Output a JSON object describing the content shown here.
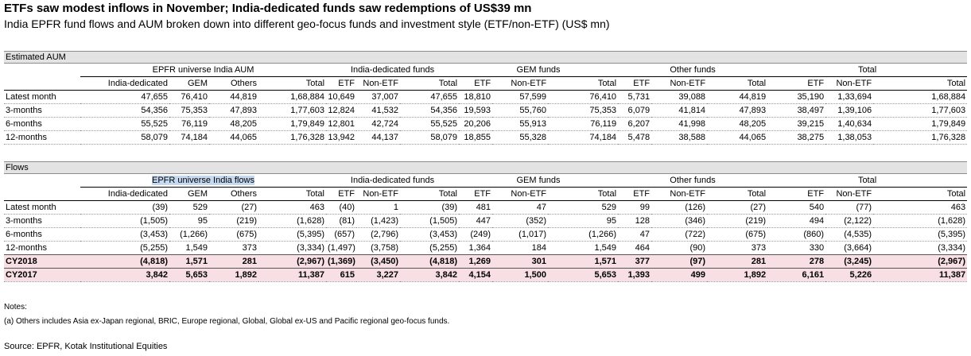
{
  "title": "ETFs saw modest inflows in November; India-dedicated funds saw redemptions of US$39 mn",
  "subtitle": "India EPFR fund flows and AUM broken down into different geo-focus funds and investment style (ETF/non-ETF) (US$ mn)",
  "aum": {
    "section_title": "Estimated AUM",
    "groups": [
      "EPFR universe India AUM",
      "India-dedicated funds",
      "GEM funds",
      "Other funds",
      "Total"
    ],
    "columns": [
      "India-dedicated",
      "GEM",
      "Others",
      "Total",
      "ETF",
      "Non-ETF",
      "Total",
      "ETF",
      "Non-ETF",
      "Total",
      "ETF",
      "Non-ETF",
      "Total",
      "ETF",
      "Non-ETF",
      "Total"
    ],
    "rows": [
      {
        "label": "Latest month",
        "values": [
          "47,655",
          "76,410",
          "44,819",
          "1,68,884",
          "10,649",
          "37,007",
          "47,655",
          "18,810",
          "57,599",
          "76,410",
          "5,731",
          "39,088",
          "44,819",
          "35,190",
          "1,33,694",
          "1,68,884"
        ]
      },
      {
        "label": "3-months",
        "values": [
          "54,356",
          "75,353",
          "47,893",
          "1,77,603",
          "12,824",
          "41,532",
          "54,356",
          "19,593",
          "55,760",
          "75,353",
          "6,079",
          "41,814",
          "47,893",
          "38,497",
          "1,39,106",
          "1,77,603"
        ]
      },
      {
        "label": "6-months",
        "values": [
          "55,525",
          "76,119",
          "48,205",
          "1,79,849",
          "12,801",
          "42,724",
          "55,525",
          "20,206",
          "55,913",
          "76,119",
          "6,207",
          "41,998",
          "48,205",
          "39,215",
          "1,40,634",
          "1,79,849"
        ]
      },
      {
        "label": "12-months",
        "values": [
          "58,079",
          "74,184",
          "44,065",
          "1,76,328",
          "13,942",
          "44,137",
          "58,079",
          "18,855",
          "55,328",
          "74,184",
          "5,478",
          "38,588",
          "44,065",
          "38,275",
          "1,38,053",
          "1,76,328"
        ]
      }
    ]
  },
  "flows": {
    "section_title": "Flows",
    "groups": [
      "EPFR universe India flows",
      "India-dedicated funds",
      "GEM funds",
      "Other funds",
      "Total"
    ],
    "columns": [
      "India-dedicated",
      "GEM",
      "Others",
      "Total",
      "ETF",
      "Non-ETF",
      "Total",
      "ETF",
      "Non-ETF",
      "Total",
      "ETF",
      "Non-ETF",
      "Total",
      "ETF",
      "Non-ETF",
      "Total"
    ],
    "rows": [
      {
        "label": "Latest month",
        "values": [
          "(39)",
          "529",
          "(27)",
          "463",
          "(40)",
          "1",
          "(39)",
          "481",
          "47",
          "529",
          "99",
          "(126)",
          "(27)",
          "540",
          "(77)",
          "463"
        ]
      },
      {
        "label": "3-months",
        "values": [
          "(1,505)",
          "95",
          "(219)",
          "(1,628)",
          "(81)",
          "(1,423)",
          "(1,505)",
          "447",
          "(352)",
          "95",
          "128",
          "(346)",
          "(219)",
          "494",
          "(2,122)",
          "(1,628)"
        ]
      },
      {
        "label": "6-months",
        "values": [
          "(3,453)",
          "(1,266)",
          "(675)",
          "(5,395)",
          "(657)",
          "(2,796)",
          "(3,453)",
          "(249)",
          "(1,017)",
          "(1,266)",
          "47",
          "(722)",
          "(675)",
          "(860)",
          "(4,535)",
          "(5,395)"
        ]
      },
      {
        "label": "12-months",
        "values": [
          "(5,255)",
          "1,549",
          "373",
          "(3,334)",
          "(1,497)",
          "(3,758)",
          "(5,255)",
          "1,364",
          "184",
          "1,549",
          "464",
          "(90)",
          "373",
          "330",
          "(3,664)",
          "(3,334)"
        ]
      }
    ],
    "bold_rows": [
      {
        "label": "CY2018",
        "values": [
          "(4,818)",
          "1,571",
          "281",
          "(2,967)",
          "(1,369)",
          "(3,450)",
          "(4,818)",
          "1,269",
          "301",
          "1,571",
          "377",
          "(97)",
          "281",
          "278",
          "(3,245)",
          "(2,967)"
        ]
      },
      {
        "label": "CY2017",
        "values": [
          "3,842",
          "5,653",
          "1,892",
          "11,387",
          "615",
          "3,227",
          "3,842",
          "4,154",
          "1,500",
          "5,653",
          "1,393",
          "499",
          "1,892",
          "6,161",
          "5,226",
          "11,387"
        ]
      }
    ]
  },
  "notes": {
    "heading": "Notes:",
    "lines": [
      "(a) Others includes Asia ex-Japan regional, BRIC, Europe regional, Global, Global ex-US and Pacific regional geo-focus funds."
    ]
  },
  "source": "Source: EPFR, Kotak Institutional Equities",
  "colors": {
    "section_header_bg": "#e3e3e3",
    "highlight_row_bg": "#f7dfe3",
    "selection_highlight": "#c5d9f1"
  }
}
